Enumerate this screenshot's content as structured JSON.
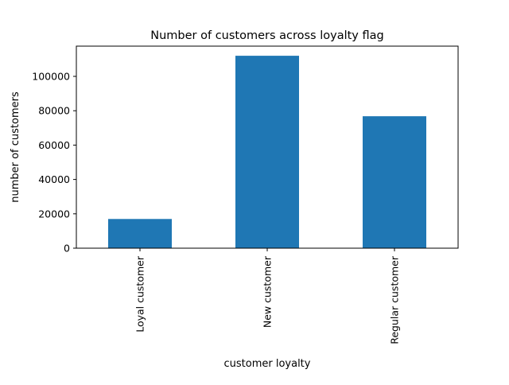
{
  "chart_data": {
    "type": "bar",
    "title": "Number of customers across loyalty flag",
    "xlabel": "customer loyalty",
    "ylabel": "number of customers",
    "categories": [
      "Loyal customer",
      "New customer",
      "Regular customer"
    ],
    "values": [
      17000,
      112000,
      76800
    ],
    "ylim": [
      0,
      117600
    ],
    "yticks": [
      0,
      20000,
      40000,
      60000,
      80000,
      100000
    ],
    "ytick_labels": [
      "0",
      "20000",
      "40000",
      "60000",
      "80000",
      "100000"
    ],
    "x_tick_label_rotation": "vertical",
    "grid": false,
    "legend": "none",
    "bar_color": "#1f77b4"
  }
}
